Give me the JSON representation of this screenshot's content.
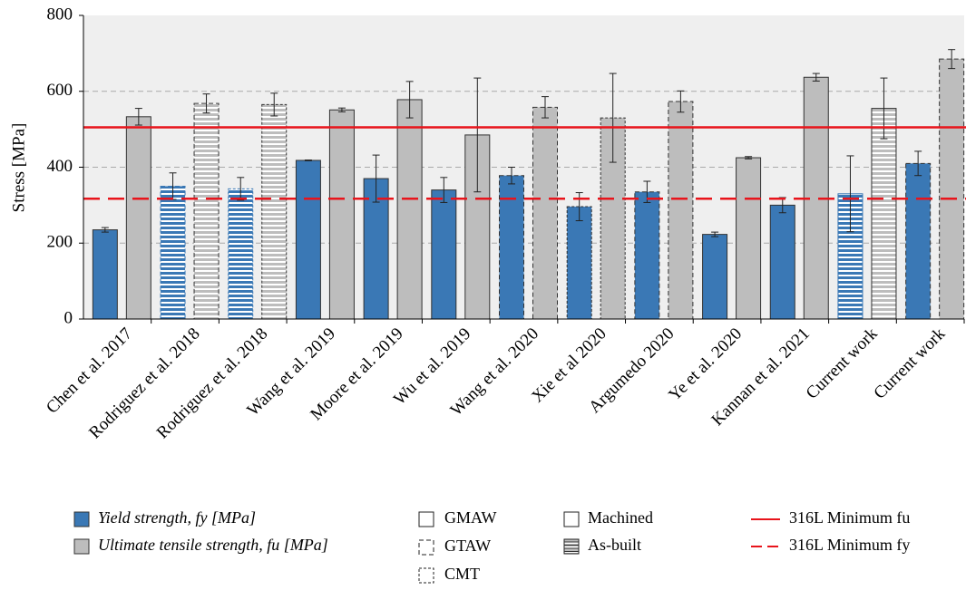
{
  "chart_data": {
    "type": "bar",
    "y_label": "Stress [MPa]",
    "categories": [
      "Chen et al. 2017",
      "Rodriguez et al. 2018",
      "Rodriguez et al. 2018",
      "Wang et al. 2019",
      "Moore et al. 2019",
      "Wu et al. 2019",
      "Wang et al. 2020",
      "Xie et al 2020",
      "Argumedo 2020",
      "Ye et al. 2020",
      "Kannan et al. 2021",
      "Current work",
      "Current work"
    ],
    "series": [
      {
        "name": "Yield strength, fy [MPa]",
        "color": "#3a78b5",
        "values": [
          235,
          350,
          343,
          418,
          370,
          340,
          378,
          296,
          335,
          223,
          300,
          330,
          410
        ],
        "errors": [
          6,
          35,
          30,
          1,
          62,
          33,
          22,
          37,
          28,
          6,
          20,
          100,
          32
        ]
      },
      {
        "name": "Ultimate tensile strength, fu [MPa]",
        "color": "#bdbdbd",
        "values": [
          533,
          568,
          565,
          551,
          578,
          485,
          558,
          530,
          573,
          425,
          637,
          555,
          685
        ],
        "errors": [
          22,
          25,
          30,
          5,
          48,
          150,
          28,
          117,
          28,
          3,
          10,
          80,
          25
        ]
      }
    ],
    "processes": [
      {
        "name": "GMAW",
        "border": "solid"
      },
      {
        "name": "GTAW",
        "border": "dashed"
      },
      {
        "name": "CMT",
        "border": "dotted"
      }
    ],
    "conditions": [
      {
        "name": "Machined",
        "pattern": "solid"
      },
      {
        "name": "As-built",
        "pattern": "hatch"
      }
    ],
    "process": [
      0,
      1,
      2,
      0,
      0,
      0,
      1,
      2,
      1,
      0,
      0,
      0,
      1
    ],
    "condition": [
      0,
      1,
      1,
      0,
      0,
      0,
      0,
      0,
      0,
      0,
      0,
      1,
      0
    ],
    "reference_lines": [
      {
        "name": "316L Minimum fu",
        "value": 505,
        "color": "#e8141b",
        "dash": "solid"
      },
      {
        "name": "316L Minimum fy",
        "value": 317,
        "color": "#e8141b",
        "dash": "dashed"
      }
    ],
    "ylim": [
      0,
      800
    ],
    "yticks": [
      0,
      200,
      400,
      600,
      800
    ],
    "grid": true
  }
}
